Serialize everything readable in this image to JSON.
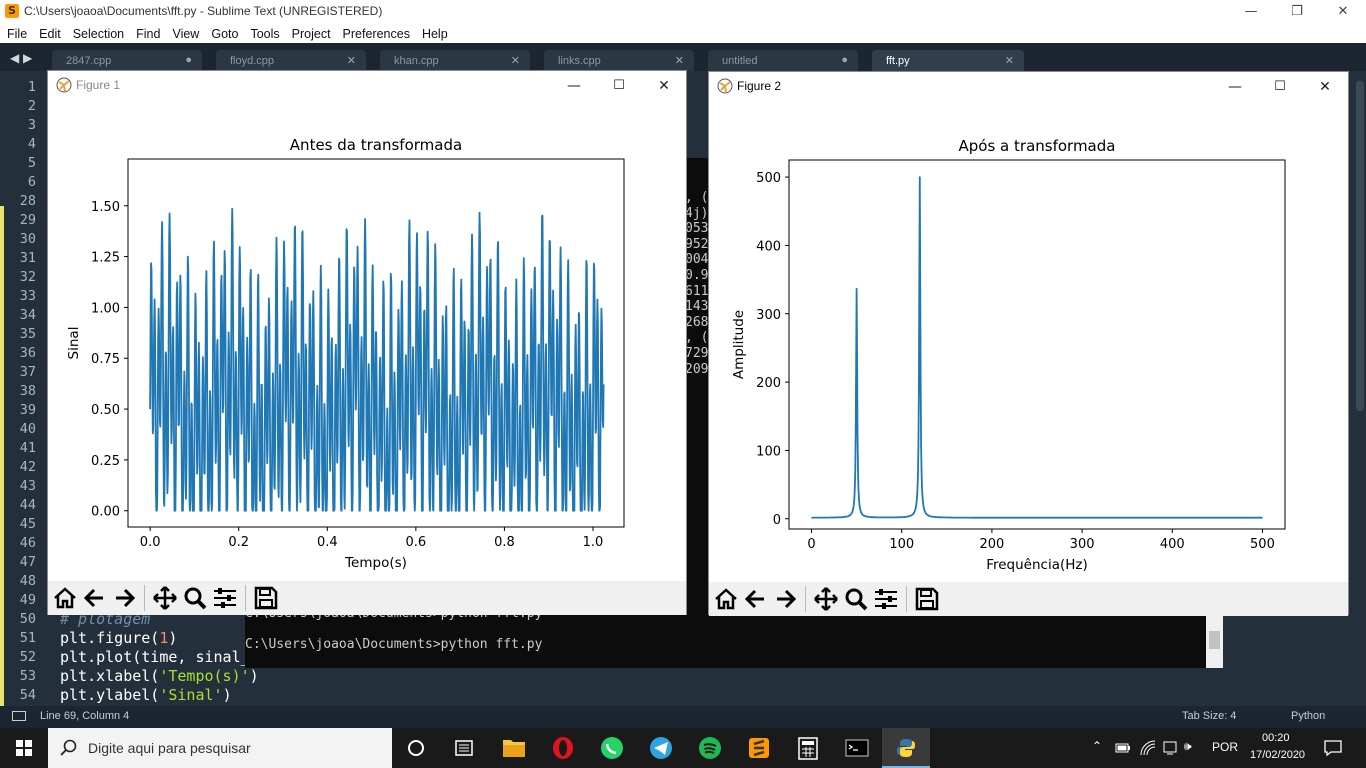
{
  "window": {
    "title": "C:\\Users\\joaoa\\Documents\\fft.py - Sublime Text (UNREGISTERED)",
    "minimize": "—",
    "restore": "❐",
    "close": "✕"
  },
  "menu": [
    "File",
    "Edit",
    "Selection",
    "Find",
    "View",
    "Goto",
    "Tools",
    "Project",
    "Preferences",
    "Help"
  ],
  "tabs": [
    {
      "label": "2847.cpp",
      "mark": "●"
    },
    {
      "label": "floyd.cpp",
      "mark": "✕"
    },
    {
      "label": "khan.cpp",
      "mark": "✕"
    },
    {
      "label": "links.cpp",
      "mark": "✕"
    },
    {
      "label": "untitled",
      "mark": "●"
    },
    {
      "label": "fft.py",
      "mark": "✕"
    }
  ],
  "tab_nav": "◀ ▶",
  "line_numbers": [
    "1",
    "2",
    "3",
    "4",
    "5",
    "6",
    "28",
    "29",
    "30",
    "31",
    "32",
    "33",
    "34",
    "35",
    "36",
    "37",
    "38",
    "39",
    "40",
    "41",
    "42",
    "43",
    "44",
    "45",
    "46",
    "47",
    "48",
    "49",
    "50",
    "51",
    "52",
    "53",
    "54"
  ],
  "code": {
    "comment": "# plotagem",
    "figure_pre": "plt.figure(",
    "figure_num": "1",
    "figure_post": ")",
    "plot": "plt.plot(time, sinal_",
    "xlabel_pre": "plt.xlabel(",
    "xlabel_str": "'Tempo(s)'",
    "xlabel_post": ")",
    "ylabel_pre": "plt.ylabel(",
    "ylabel_str": "'Sinal'",
    "ylabel_post": ")"
  },
  "console": {
    "fragments": [
      ", (",
      "4j)",
      "053",
      "952",
      "004",
      "0.9",
      "611",
      "143",
      "268",
      ", (",
      "729",
      "209"
    ],
    "prompt_partial": "C:\\Users\\joaoa\\Documents>python fft.py",
    "prompt": "C:\\Users\\joaoa\\Documents>python fft.py"
  },
  "status": {
    "position": "Line 69, Column 4",
    "tab_size": "Tab Size: 4",
    "syntax": "Python"
  },
  "figure1": {
    "window_title": "Figure 1",
    "chart_data": {
      "type": "line",
      "title": "Antes da transformada",
      "xlabel": "Tempo(s)",
      "ylabel": "Sinal",
      "xlim": [
        -0.05,
        1.07
      ],
      "ylim": [
        -0.08,
        1.73
      ],
      "xticks": [
        "0.0",
        "0.2",
        "0.4",
        "0.6",
        "0.8",
        "1.0"
      ],
      "xtick_values": [
        0.0,
        0.2,
        0.4,
        0.6,
        0.8,
        1.0
      ],
      "yticks": [
        "0.00",
        "0.25",
        "0.50",
        "0.75",
        "1.00",
        "1.25",
        "1.50"
      ],
      "ytick_values": [
        0.0,
        0.25,
        0.5,
        0.75,
        1.0,
        1.25,
        1.5
      ],
      "signal": {
        "offset": 0.5,
        "components": [
          {
            "freq_hz": 50,
            "amplitude": 0.7
          },
          {
            "freq_hz": 120,
            "amplitude": 1.0
          }
        ],
        "t_start": 0.0,
        "t_end": 1.024,
        "samples": 1024,
        "color": "#1f77b4"
      }
    }
  },
  "figure2": {
    "window_title": "Figure 2",
    "chart_data": {
      "type": "line",
      "title": "Após a transformada",
      "xlabel": "Frequência(Hz)",
      "ylabel": "Amplitude",
      "xlim": [
        -25,
        525
      ],
      "ylim": [
        -15,
        525
      ],
      "xticks": [
        "0",
        "100",
        "200",
        "300",
        "400",
        "500"
      ],
      "xtick_values": [
        0,
        100,
        200,
        300,
        400,
        500
      ],
      "yticks": [
        "0",
        "100",
        "200",
        "300",
        "400",
        "500"
      ],
      "ytick_values": [
        0,
        100,
        200,
        300,
        400,
        500
      ],
      "peaks": [
        {
          "freq_hz": 50,
          "amplitude": 335
        },
        {
          "freq_hz": 120,
          "amplitude": 500
        }
      ],
      "color": "#1f77b4"
    }
  },
  "taskbar": {
    "search_placeholder": "Digite aqui para pesquisar",
    "language": "POR",
    "time": "00:20",
    "date": "17/02/2020"
  }
}
